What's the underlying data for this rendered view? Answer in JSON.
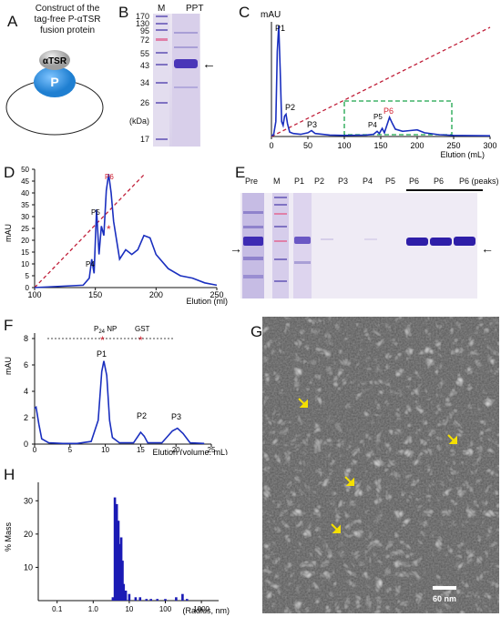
{
  "panels": {
    "A": {
      "letter": "A",
      "title_line1": "Construct of the",
      "title_line2": "tag-free P-αTSR",
      "title_line3": "fusion protein",
      "atsr_label": "αTSR",
      "p_label": "P"
    },
    "B": {
      "letter": "B",
      "lane_m": "M",
      "lane_ppt": "PPT",
      "ladder_kda": [
        "170",
        "130",
        "95",
        "72",
        "55",
        "43",
        "34",
        "26",
        "17"
      ],
      "unit": "(kDa)",
      "arrow": "←"
    },
    "C": {
      "letter": "C",
      "ylabel": "mAU",
      "xlabel": "Elution (mL)",
      "xticks": [
        "0",
        "50",
        "100",
        "150",
        "200",
        "250",
        "300"
      ],
      "peaks": [
        "P1",
        "P2",
        "P3",
        "P4",
        "P5",
        "P6"
      ]
    },
    "D": {
      "letter": "D",
      "ylabel": "mAU",
      "xlabel": "Elution (ml)",
      "yticks": [
        "0",
        "5",
        "10",
        "15",
        "20",
        "25",
        "30",
        "35",
        "40",
        "45",
        "50"
      ],
      "xticks": [
        "100",
        "150",
        "200",
        "250"
      ],
      "peaks": [
        "P4",
        "P5",
        "P6"
      ]
    },
    "E": {
      "letter": "E",
      "lanes": [
        "Pre",
        "M",
        "P1",
        "P2",
        "P3",
        "P4",
        "P5",
        "P6",
        "P6",
        "P6 (peaks)"
      ],
      "arrow_left": "→",
      "arrow_right": "←"
    },
    "F": {
      "letter": "F",
      "ylabel": "mAU",
      "xlabel": "Elution (volume, mL)",
      "yticks": [
        "0",
        "2",
        "4",
        "6",
        "8"
      ],
      "xticks": [
        "0",
        "5",
        "10",
        "15",
        "20",
        "25"
      ],
      "marker_np_base": "P",
      "marker_np_sub": "24",
      "marker_np_tail": " NP",
      "marker_gst": "GST",
      "peaks": [
        "P1",
        "P2",
        "P3"
      ]
    },
    "G": {
      "letter": "G",
      "scale_bar": "60 nm"
    },
    "H": {
      "letter": "H",
      "ylabel": "% Mass",
      "xlabel": "(Radius, nm)",
      "yticks": [
        "10",
        "20",
        "30"
      ],
      "xticks": [
        "0.1",
        "1.0",
        "10",
        "100",
        "1000"
      ]
    }
  },
  "colors": {
    "trace": "#1a2fbf",
    "gradient": "#c0203a",
    "roi_box": "#1aa34a",
    "p6_label": "#d2202f",
    "p_domain": "#1f7fd1",
    "atsr_domain": "#bdbdbd",
    "gel_band": "#2e1ea8",
    "em_arrow": "#f5e000"
  },
  "chart_data": [
    {
      "type": "line",
      "panel": "C",
      "ylabel": "mAU",
      "xlabel": "Elution (mL)",
      "xlim": [
        0,
        300
      ],
      "x": [
        0,
        3,
        6,
        8,
        10,
        12,
        14,
        16,
        18,
        20,
        22,
        25,
        30,
        40,
        50,
        55,
        60,
        80,
        100,
        130,
        140,
        145,
        148,
        152,
        155,
        158,
        162,
        166,
        170,
        180,
        190,
        200,
        210,
        230,
        250,
        300
      ],
      "series": [
        {
          "values": [
            2,
            5,
            40,
            230,
            300,
            180,
            40,
            30,
            55,
            60,
            35,
            12,
            8,
            6,
            10,
            16,
            8,
            4,
            3,
            4,
            6,
            14,
            8,
            22,
            10,
            28,
            52,
            35,
            20,
            14,
            16,
            18,
            10,
            5,
            3,
            2
          ]
        }
      ],
      "annotations": [
        "P1",
        "P2",
        "P3",
        "P4",
        "P5",
        "P6"
      ]
    },
    {
      "type": "line",
      "panel": "D",
      "ylabel": "mAU",
      "xlabel": "Elution (ml)",
      "ylim": [
        0,
        50
      ],
      "xlim": [
        100,
        250
      ],
      "x": [
        100,
        140,
        145,
        147,
        149,
        151,
        153,
        155,
        157,
        159,
        161,
        163,
        165,
        170,
        175,
        180,
        185,
        190,
        195,
        200,
        210,
        220,
        230,
        240,
        250
      ],
      "series": [
        {
          "values": [
            0,
            1,
            4,
            12,
            6,
            33,
            14,
            26,
            22,
            41,
            48,
            40,
            28,
            12,
            16,
            14,
            16,
            22,
            21,
            14,
            8,
            5,
            4,
            2,
            1
          ]
        }
      ],
      "annotations": [
        "P4",
        "P5",
        "P6"
      ]
    },
    {
      "type": "line",
      "panel": "F",
      "ylabel": "mAU",
      "xlabel": "Elution (volume, mL)",
      "ylim": [
        0,
        8
      ],
      "xlim": [
        0,
        25
      ],
      "x": [
        0,
        0.2,
        0.6,
        1,
        2,
        4,
        6,
        8,
        9,
        9.5,
        9.8,
        10.2,
        10.6,
        11,
        12,
        14,
        15,
        15.5,
        16,
        18,
        19.5,
        20.2,
        21,
        22,
        24
      ],
      "series": [
        {
          "values": [
            2.7,
            2.8,
            1.5,
            0.4,
            0.1,
            0.05,
            0.05,
            0.2,
            1.8,
            5.5,
            6.3,
            5.2,
            1.8,
            0.5,
            0.1,
            0.1,
            0.9,
            0.6,
            0.1,
            0.1,
            1.0,
            1.2,
            0.8,
            0.1,
            0.05
          ]
        }
      ],
      "annotations": [
        "P1",
        "P2",
        "P3"
      ]
    },
    {
      "type": "bar",
      "panel": "H",
      "ylabel": "% Mass",
      "xlabel": "(Radius, nm)",
      "x_scale": "log",
      "ylim": [
        0,
        35
      ],
      "x": [
        3.5,
        4.0,
        4.5,
        5.0,
        5.5,
        6.0,
        6.5,
        7.0,
        8.0,
        10,
        15,
        20,
        30,
        40,
        60,
        100,
        200,
        300,
        400
      ],
      "series": [
        {
          "values": [
            1,
            31,
            29,
            24,
            17,
            19,
            12,
            5,
            3,
            2,
            1,
            1,
            0.5,
            0.5,
            0.5,
            0.5,
            1,
            2,
            0.5
          ]
        }
      ]
    }
  ]
}
